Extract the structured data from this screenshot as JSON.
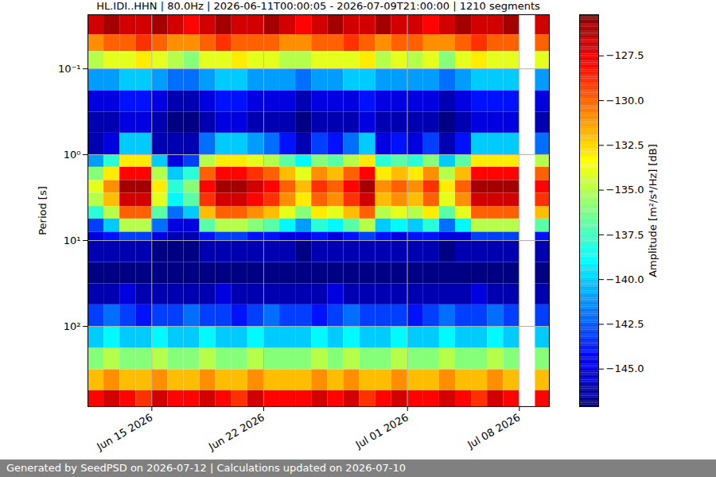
{
  "chart_data": {
    "type": "heatmap",
    "title": "HL.IDI..HHN | 80.0Hz | 2026-06-11T00:00:05 - 2026-07-09T21:00:00 | 1210 segments",
    "y_label": "Period [s]",
    "footer": "Generated by SeedPSD on 2026-07-12 | Calculations updated on 2026-07-10",
    "log": "y",
    "grid": true,
    "xlim": [
      "2026-06-11T00:00:05",
      "2026-07-09T21:00:00"
    ],
    "xticks": [
      {
        "value": "2026-06-15T00:00:00",
        "label": "Jun 15 2026"
      },
      {
        "value": "2026-06-22T00:00:00",
        "label": "Jun 22 2026"
      },
      {
        "value": "2026-07-01T00:00:00",
        "label": "Jul 01 2026"
      },
      {
        "value": "2026-07-08T00:00:00",
        "label": "Jul 08 2026"
      }
    ],
    "ylim": [
      0.0234,
      861
    ],
    "yticks": [
      {
        "value": 0.1,
        "label": "10⁻¹"
      },
      {
        "value": 1,
        "label": "10⁰"
      },
      {
        "value": 10,
        "label": "10¹"
      },
      {
        "value": 100,
        "label": "10²"
      }
    ],
    "x": [
      "2026-06-11T00:00:05",
      "2026-06-12T00:00:00",
      "2026-06-13T00:00:00",
      "2026-06-14T00:00:00",
      "2026-06-15T00:00:00",
      "2026-06-16T00:00:00",
      "2026-06-17T00:00:00",
      "2026-06-18T00:00:00",
      "2026-06-19T00:00:00",
      "2026-06-20T00:00:00",
      "2026-06-21T00:00:00",
      "2026-06-22T00:00:00",
      "2026-06-23T00:00:00",
      "2026-06-24T00:00:00",
      "2026-06-25T00:00:00",
      "2026-06-26T00:00:00",
      "2026-06-27T00:00:00",
      "2026-06-28T00:00:00",
      "2026-06-29T00:00:00",
      "2026-06-30T00:00:00",
      "2026-07-01T00:00:00",
      "2026-07-02T00:00:00",
      "2026-07-03T00:00:00",
      "2026-07-04T00:00:00",
      "2026-07-05T00:00:00",
      "2026-07-06T00:00:00",
      "2026-07-07T00:00:00",
      "2026-07-08T00:00:00",
      "2026-07-09T00:00:00",
      "2026-07-09T21:00:00"
    ],
    "periods": [
      0.0234,
      0.04,
      0.063,
      0.1,
      0.18,
      0.32,
      0.56,
      1,
      1.4,
      2,
      2.8,
      4,
      5.6,
      8,
      10,
      18,
      32,
      56,
      100,
      180,
      320,
      560,
      861
    ],
    "values": [
      [
        -127,
        -126,
        -127,
        -127,
        -126,
        -127,
        -128,
        -127,
        -126,
        -127,
        -127,
        -126,
        -127,
        -128,
        -127,
        -126,
        -127,
        -127,
        -126,
        -127,
        -127,
        -128,
        -127,
        -126,
        -127,
        -127,
        -126,
        null,
        -127
      ],
      [
        -131,
        -130,
        -130,
        -129,
        -130,
        -131,
        -131,
        -130,
        -129,
        -130,
        -130,
        -130,
        -131,
        -131,
        -130,
        -130,
        -129,
        -130,
        -131,
        -130,
        -130,
        -131,
        -131,
        -130,
        -129,
        -130,
        -130,
        null,
        -130
      ],
      [
        -135,
        -134,
        -134,
        -133,
        -134,
        -135,
        -136,
        -134,
        -134,
        -133,
        -134,
        -134,
        -135,
        -135,
        -134,
        -134,
        -134,
        -133,
        -135,
        -134,
        -135,
        -134,
        -136,
        -134,
        -133,
        -134,
        -134,
        null,
        -134
      ],
      [
        -141,
        -141,
        -140,
        -140,
        -141,
        -142,
        -142,
        -141,
        -140,
        -140,
        -141,
        -141,
        -141,
        -142,
        -141,
        -141,
        -140,
        -140,
        -141,
        -141,
        -141,
        -141,
        -142,
        -141,
        -140,
        -140,
        -140,
        null,
        -141
      ],
      [
        -145,
        -145,
        -144,
        -144,
        -145,
        -146,
        -146,
        -145,
        -144,
        -144,
        -145,
        -145,
        -145,
        -146,
        -145,
        -145,
        -145,
        -144,
        -145,
        -145,
        -145,
        -145,
        -146,
        -145,
        -144,
        -144,
        -144,
        null,
        -145
      ],
      [
        -146,
        -146,
        -145,
        -145,
        -146,
        -147,
        -147,
        -146,
        -145,
        -145,
        -146,
        -146,
        -146,
        -147,
        -146,
        -146,
        -146,
        -145,
        -146,
        -146,
        -146,
        -146,
        -147,
        -146,
        -145,
        -145,
        -145,
        null,
        -146
      ],
      [
        -146,
        -145,
        -140,
        -140,
        -146,
        -146,
        -146,
        -142,
        -140,
        -140,
        -141,
        -142,
        -144,
        -146,
        -143,
        -144,
        -142,
        -140,
        -145,
        -144,
        -145,
        -143,
        -146,
        -144,
        -140,
        -140,
        -140,
        null,
        -142
      ],
      [
        -141,
        -138,
        -133,
        -133,
        -140,
        -145,
        -143,
        -135,
        -133,
        -133,
        -134,
        -135,
        -137,
        -139,
        -136,
        -137,
        -135,
        -133,
        -138,
        -137,
        -138,
        -136,
        -140,
        -137,
        -133,
        -133,
        -133,
        null,
        -135
      ],
      [
        -136,
        -133,
        -128,
        -128,
        -135,
        -140,
        -138,
        -130,
        -128,
        -128,
        -129,
        -130,
        -132,
        -134,
        -131,
        -132,
        -130,
        -128,
        -133,
        -132,
        -133,
        -131,
        -135,
        -132,
        -128,
        -128,
        -128,
        null,
        -130
      ],
      [
        -134,
        -131,
        -126,
        -126,
        -133,
        -138,
        -136,
        -128,
        -126,
        -126,
        -127,
        -128,
        -130,
        -132,
        -129,
        -130,
        -128,
        -126,
        -131,
        -130,
        -131,
        -129,
        -133,
        -130,
        -126,
        -126,
        -126,
        null,
        -128
      ],
      [
        -135,
        -132,
        -127,
        -127,
        -134,
        -139,
        -137,
        -129,
        -127,
        -127,
        -128,
        -129,
        -131,
        -133,
        -130,
        -131,
        -129,
        -127,
        -132,
        -131,
        -132,
        -130,
        -134,
        -131,
        -127,
        -127,
        -127,
        null,
        -129
      ],
      [
        -138,
        -135,
        -130,
        -130,
        -137,
        -142,
        -140,
        -132,
        -130,
        -130,
        -131,
        -132,
        -134,
        -136,
        -133,
        -134,
        -132,
        -130,
        -135,
        -134,
        -135,
        -133,
        -137,
        -134,
        -130,
        -130,
        -130,
        null,
        -132
      ],
      [
        -143,
        -140,
        -135,
        -135,
        -142,
        -145,
        -145,
        -137,
        -135,
        -135,
        -136,
        -137,
        -139,
        -141,
        -138,
        -139,
        -137,
        -135,
        -140,
        -139,
        -140,
        -138,
        -142,
        -139,
        -135,
        -135,
        -135,
        null,
        -137
      ],
      [
        -145,
        -144,
        -143,
        -143,
        -145,
        -146,
        -146,
        -144,
        -143,
        -143,
        -144,
        -144,
        -145,
        -145,
        -144,
        -145,
        -144,
        -143,
        -144,
        -145,
        -144,
        -144,
        -145,
        -145,
        -143,
        -143,
        -143,
        null,
        -144
      ],
      [
        -146,
        -146,
        -146,
        -146,
        -147,
        -147,
        -147,
        -146,
        -146,
        -146,
        -146,
        -146,
        -146,
        -147,
        -146,
        -146,
        -146,
        -146,
        -146,
        -146,
        -146,
        -146,
        -147,
        -146,
        -146,
        -146,
        -146,
        null,
        -146
      ],
      [
        -147,
        -147,
        -147,
        -147,
        -147,
        -147,
        -147,
        -147,
        -147,
        -147,
        -147,
        -147,
        -147,
        -147,
        -147,
        -147,
        -147,
        -147,
        -147,
        -147,
        -147,
        -147,
        -147,
        -147,
        -147,
        -147,
        -147,
        null,
        -147
      ],
      [
        -146,
        -146,
        -145,
        -146,
        -146,
        -146,
        -146,
        -146,
        -145,
        -146,
        -146,
        -146,
        -146,
        -146,
        -146,
        -145,
        -146,
        -146,
        -146,
        -146,
        -146,
        -146,
        -146,
        -146,
        -145,
        -146,
        -146,
        null,
        -146
      ],
      [
        -143,
        -142,
        -143,
        -144,
        -143,
        -143,
        -142,
        -143,
        -143,
        -144,
        -143,
        -142,
        -143,
        -143,
        -144,
        -143,
        -142,
        -143,
        -143,
        -143,
        -144,
        -143,
        -142,
        -143,
        -143,
        -142,
        -143,
        null,
        -143
      ],
      [
        -140,
        -139,
        -140,
        -140,
        -139,
        -140,
        -140,
        -139,
        -140,
        -140,
        -139,
        -140,
        -140,
        -140,
        -139,
        -140,
        -139,
        -140,
        -140,
        -139,
        -140,
        -140,
        -139,
        -140,
        -140,
        -139,
        -140,
        null,
        -140
      ],
      [
        -136,
        -135,
        -136,
        -136,
        -135,
        -136,
        -136,
        -135,
        -136,
        -136,
        -135,
        -136,
        -136,
        -136,
        -135,
        -136,
        -135,
        -136,
        -136,
        -135,
        -136,
        -136,
        -135,
        -136,
        -136,
        -135,
        -136,
        null,
        -136
      ],
      [
        -132,
        -131,
        -132,
        -132,
        -131,
        -132,
        -132,
        -131,
        -132,
        -132,
        -131,
        -132,
        -132,
        -132,
        -131,
        -132,
        -131,
        -132,
        -132,
        -131,
        -132,
        -132,
        -131,
        -132,
        -132,
        -131,
        -132,
        null,
        -132
      ],
      [
        -128,
        -127,
        -128,
        -129,
        -127,
        -128,
        -128,
        -127,
        -128,
        -129,
        -127,
        -128,
        -128,
        -128,
        -127,
        -128,
        -127,
        -129,
        -128,
        -127,
        -128,
        -128,
        -127,
        -128,
        -129,
        -127,
        -128,
        null,
        -128
      ]
    ],
    "colorbar": {
      "label": "Amplitude [m²/s⁴/Hz] [dB]",
      "lim": [
        -147.1,
        -125.2
      ],
      "ticks": [
        {
          "value": -145,
          "label": "−145.0"
        },
        {
          "value": -142.5,
          "label": "−142.5"
        },
        {
          "value": -140,
          "label": "−140.0"
        },
        {
          "value": -137.5,
          "label": "−137.5"
        },
        {
          "value": -135,
          "label": "−135.0"
        },
        {
          "value": -132.5,
          "label": "−132.5"
        },
        {
          "value": -130,
          "label": "−130.0"
        },
        {
          "value": -127.5,
          "label": "−127.5"
        }
      ]
    }
  }
}
